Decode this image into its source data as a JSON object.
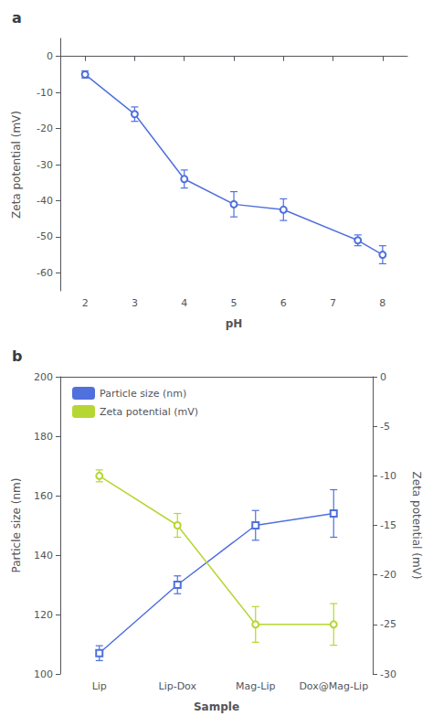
{
  "chart_data": [
    {
      "type": "line",
      "title": "a",
      "xlabel": "pH",
      "ylabel": "Zeta potential (mV)",
      "x": [
        2,
        3,
        4,
        5,
        6,
        7.5,
        8
      ],
      "xlim": [
        1.5,
        8.5
      ],
      "xticks": [
        2,
        3,
        4,
        5,
        6,
        7,
        8
      ],
      "ylim": [
        -65,
        5
      ],
      "yticks": [
        0,
        -10,
        -20,
        -30,
        -40,
        -50,
        -60
      ],
      "grid": false,
      "series": [
        {
          "values": [
            -5,
            -16,
            -34,
            -41,
            -42.5,
            -51,
            -55
          ],
          "yerr": [
            1.0,
            2.0,
            2.5,
            3.5,
            3.0,
            1.5,
            2.5
          ],
          "marker": "circle"
        }
      ]
    },
    {
      "type": "line",
      "title": "b",
      "xlabel": "Sample",
      "ylabel": "Particle size (nm)",
      "y2label": "Zeta potential (mV)",
      "categories": [
        "Lip",
        "Lip-Dox",
        "Mag-Lip",
        "Dox@Mag-Lip"
      ],
      "ylim": [
        100,
        200
      ],
      "yticks": [
        100,
        120,
        140,
        160,
        180,
        200
      ],
      "y2lim": [
        -30,
        0
      ],
      "y2ticks": [
        -30,
        -25,
        -20,
        -15,
        -10,
        -5,
        0
      ],
      "grid": false,
      "legend": "upper left",
      "series": [
        {
          "name": "Particle size (nm)",
          "values": [
            107,
            130,
            150,
            154
          ],
          "yerr": [
            2.5,
            3.0,
            5.0,
            8.0
          ],
          "marker": "square"
        },
        {
          "name": "Zeta potential (mV)",
          "axis": "y2",
          "values": [
            -10,
            -15,
            -25,
            -25
          ],
          "yerr": [
            0.6,
            1.2,
            1.8,
            2.1
          ],
          "marker": "circle"
        }
      ]
    }
  ]
}
